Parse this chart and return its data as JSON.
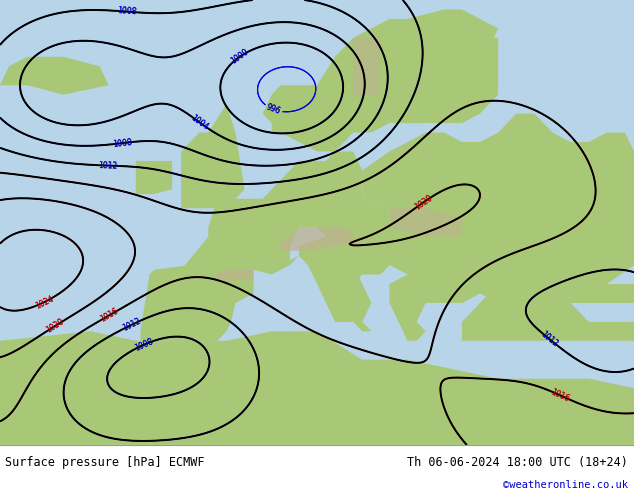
{
  "title_left": "Surface pressure [hPa] ECMWF",
  "title_right": "Th 06-06-2024 18:00 UTC (18+24)",
  "copyright": "©weatheronline.co.uk",
  "copyright_color": "#0000cc",
  "sea_color": "#b8d4e8",
  "land_color": "#a8c878",
  "mountain_color": "#c0b090",
  "footer_bg": "#d8d8d8",
  "text_color": "#000000",
  "figsize": [
    6.34,
    4.9
  ],
  "dpi": 100,
  "map_extent": [
    -25,
    45,
    25,
    72
  ]
}
